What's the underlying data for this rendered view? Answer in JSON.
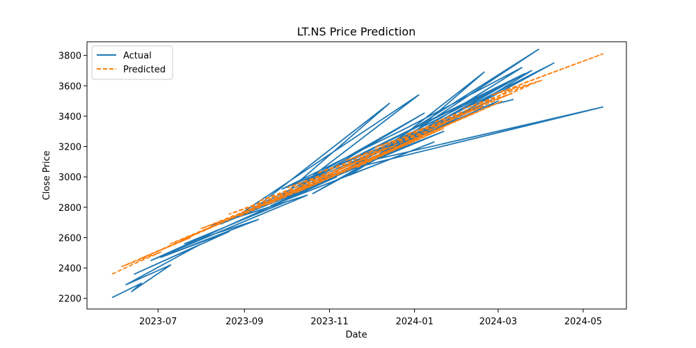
{
  "chart_data": {
    "type": "line",
    "title": "LT.NS Price Prediction",
    "xlabel": "Date",
    "ylabel": "Close Price",
    "x_type": "date",
    "xlim": [
      "2023-05-11",
      "2024-06-01"
    ],
    "ylim": [
      2130,
      3890
    ],
    "x_ticks": [
      {
        "date": "2023-07-01",
        "label": "2023-07"
      },
      {
        "date": "2023-09-01",
        "label": "2023-09"
      },
      {
        "date": "2023-11-01",
        "label": "2023-11"
      },
      {
        "date": "2024-01-01",
        "label": "2024-01"
      },
      {
        "date": "2024-03-01",
        "label": "2024-03"
      },
      {
        "date": "2024-05-01",
        "label": "2024-05"
      }
    ],
    "y_ticks": [
      2200,
      2400,
      2600,
      2800,
      3000,
      3200,
      3400,
      3600,
      3800
    ],
    "grid": false,
    "legend": "top-left",
    "series": [
      {
        "name": "Actual",
        "color": "#1f77b4",
        "style": "solid",
        "x": [
          "2023-05-29",
          "2023-06-19",
          "2023-06-12",
          "2023-07-10",
          "2023-06-08",
          "2023-07-31",
          "2023-06-14",
          "2023-08-21",
          "2023-07-03",
          "2023-09-11",
          "2023-07-20",
          "2023-10-02",
          "2023-08-08",
          "2023-10-16",
          "2023-06-26",
          "2023-11-06",
          "2023-09-05",
          "2023-12-14",
          "2023-09-25",
          "2024-01-08",
          "2023-10-10",
          "2024-03-20",
          "2023-10-20",
          "2024-04-10",
          "2023-11-10",
          "2024-05-15",
          "2023-11-22",
          "2024-03-30",
          "2023-12-04",
          "2024-02-20",
          "2023-12-20",
          "2024-03-01",
          "2023-10-05",
          "2024-02-01",
          "2023-09-20",
          "2024-01-15",
          "2023-11-15",
          "2024-03-18",
          "2023-12-28",
          "2023-09-28",
          "2024-02-12",
          "2023-08-15",
          "2024-01-22",
          "2023-10-25",
          "2024-03-08",
          "2023-11-28",
          "2024-01-30",
          "2023-12-12",
          "2024-02-26",
          "2023-10-12",
          "2024-01-04",
          "2023-08-28",
          "2024-03-25",
          "2024-02-06",
          "2024-03-12"
        ],
        "y": [
          2205,
          2300,
          2245,
          2420,
          2290,
          2555,
          2360,
          2640,
          2470,
          2720,
          2560,
          2840,
          2680,
          2880,
          2450,
          3000,
          2770,
          3485,
          2850,
          3420,
          2950,
          3680,
          2890,
          3750,
          3040,
          3460,
          3090,
          3840,
          3130,
          3690,
          3200,
          3500,
          2890,
          3380,
          2810,
          3230,
          3010,
          3720,
          3330,
          2920,
          3450,
          2690,
          3300,
          2980,
          3620,
          3100,
          3400,
          3150,
          3510,
          2950,
          3540,
          2750,
          3700,
          3430,
          3510
        ]
      },
      {
        "name": "Predicted",
        "color": "#ff7f0e",
        "style": "dashed",
        "x": [
          "2023-05-29",
          "2023-06-12",
          "2023-07-03",
          "2023-06-05",
          "2023-07-24",
          "2023-06-19",
          "2023-08-14",
          "2023-07-10",
          "2023-09-04",
          "2023-08-01",
          "2023-09-25",
          "2023-08-21",
          "2023-10-16",
          "2023-09-11",
          "2023-11-06",
          "2023-10-02",
          "2023-11-27",
          "2023-10-23",
          "2023-12-18",
          "2023-11-13",
          "2024-01-08",
          "2023-12-04",
          "2024-01-29",
          "2023-12-26",
          "2024-02-19",
          "2024-01-15",
          "2024-03-11",
          "2024-02-05",
          "2024-04-01",
          "2024-02-26",
          "2024-05-15",
          "2024-03-20",
          "2023-11-20",
          "2024-02-12",
          "2023-10-09",
          "2024-01-22",
          "2023-09-18",
          "2023-12-11",
          "2023-08-28",
          "2024-03-04",
          "2023-07-17",
          "2024-03-25"
        ],
        "y": [
          2360,
          2420,
          2505,
          2410,
          2600,
          2465,
          2690,
          2560,
          2775,
          2660,
          2860,
          2755,
          2945,
          2840,
          3035,
          2930,
          3120,
          3025,
          3205,
          3110,
          3295,
          3195,
          3380,
          3280,
          3460,
          3360,
          3550,
          3450,
          3635,
          3540,
          3810,
          3620,
          3060,
          3420,
          2900,
          3320,
          2820,
          3190,
          2740,
          3500,
          2580,
          3610
        ]
      }
    ]
  }
}
